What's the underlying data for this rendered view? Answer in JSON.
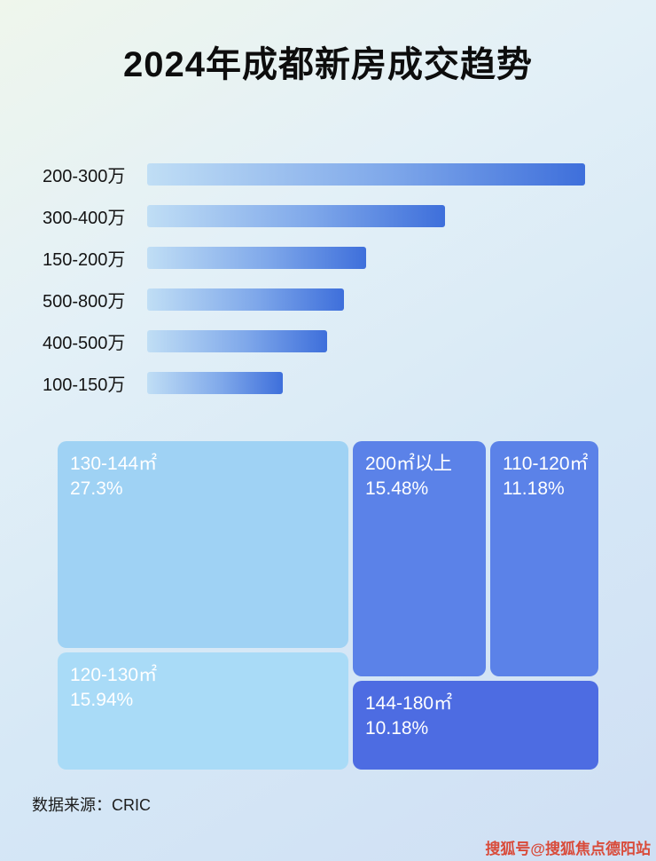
{
  "page": {
    "title": "2024年成都新房成交趋势",
    "source": "数据来源：CRIC",
    "watermark": "搜狐号@搜狐焦点德阳站"
  },
  "colors": {
    "bar_gradient_start": "#c0def5",
    "bar_gradient_end": "#3e6fdb",
    "treemap_light_1": "#9fd2f4",
    "treemap_light_2": "#a9dbf7",
    "treemap_medium": "#5b82e8",
    "treemap_dark": "#4d6ce2",
    "watermark_red": "#d94b3a"
  },
  "chart_data": [
    {
      "type": "bar",
      "orientation": "horizontal",
      "title": "2024年成都新房成交趋势",
      "categories": [
        "200-300万",
        "300-400万",
        "150-200万",
        "500-800万",
        "400-500万",
        "100-150万"
      ],
      "values": [
        100,
        68,
        50,
        45,
        41,
        31
      ],
      "values_note": "no numeric labels shown; values are relative bar lengths estimated from pixels, longest bar = 100",
      "xlim": [
        0,
        100
      ],
      "grid": false,
      "legend": false
    },
    {
      "type": "treemap",
      "title": "",
      "items": [
        {
          "label": "130-144㎡",
          "pct": "27.3%",
          "value": 27.3
        },
        {
          "label": "120-130㎡",
          "pct": "15.94%",
          "value": 15.94
        },
        {
          "label": "200㎡以上",
          "pct": "15.48%",
          "value": 15.48
        },
        {
          "label": "110-120㎡",
          "pct": "11.18%",
          "value": 11.18
        },
        {
          "label": "144-180㎡",
          "pct": "10.18%",
          "value": 10.18
        }
      ]
    }
  ]
}
